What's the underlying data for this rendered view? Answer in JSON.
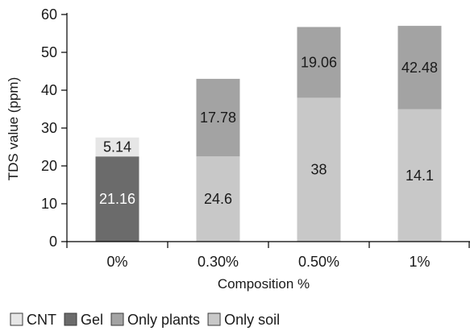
{
  "chart_data": {
    "type": "bar",
    "stacked": true,
    "categories": [
      "0%",
      "0.30%",
      "0.50%",
      "1%"
    ],
    "xlabel": "Composition %",
    "ylabel": "TDS value (ppm)",
    "ylim": [
      0,
      60
    ],
    "yticks": [
      0,
      10,
      20,
      30,
      40,
      50,
      60
    ],
    "grid": false,
    "legend_position": "bottom",
    "legend": [
      {
        "name": "CNT",
        "color": "#e6e6e6"
      },
      {
        "name": "Gel",
        "color": "#6b6b6b"
      },
      {
        "name": "Only plants",
        "color": "#a3a3a3"
      },
      {
        "name": "Only soil",
        "color": "#c8c8c8"
      }
    ],
    "bars": [
      {
        "category": "0%",
        "segments": [
          {
            "series": "Gel",
            "value": 21.16,
            "label": "21.16",
            "bottom": 0,
            "top": 22.5,
            "color": "#6b6b6b",
            "text_color": "#ffffff"
          },
          {
            "series": "CNT",
            "value": 5.14,
            "label": "5.14",
            "bottom": 22.5,
            "top": 27.5,
            "color": "#e6e6e6",
            "text_color": "#1a1a1a"
          }
        ]
      },
      {
        "category": "0.30%",
        "segments": [
          {
            "series": "Only soil",
            "value": 24.6,
            "label": "24.6",
            "bottom": 0,
            "top": 22.5,
            "color": "#c8c8c8",
            "text_color": "#1a1a1a"
          },
          {
            "series": "Only plants",
            "value": 17.78,
            "label": "17.78",
            "bottom": 22.5,
            "top": 43,
            "color": "#a3a3a3",
            "text_color": "#1a1a1a"
          }
        ]
      },
      {
        "category": "0.50%",
        "segments": [
          {
            "series": "Only soil",
            "value": 38,
            "label": "38",
            "bottom": 0,
            "top": 38,
            "color": "#c8c8c8",
            "text_color": "#1a1a1a"
          },
          {
            "series": "Only plants",
            "value": 19.06,
            "label": "19.06",
            "bottom": 38,
            "top": 56.7,
            "color": "#a3a3a3",
            "text_color": "#1a1a1a"
          }
        ]
      },
      {
        "category": "1%",
        "segments": [
          {
            "series": "Only soil",
            "value": 14.1,
            "label": "14.1",
            "bottom": 0,
            "top": 35,
            "color": "#c8c8c8",
            "text_color": "#1a1a1a"
          },
          {
            "series": "Only plants",
            "value": 42.48,
            "label": "42.48",
            "bottom": 35,
            "top": 57,
            "color": "#a3a3a3",
            "text_color": "#1a1a1a"
          }
        ]
      }
    ]
  }
}
